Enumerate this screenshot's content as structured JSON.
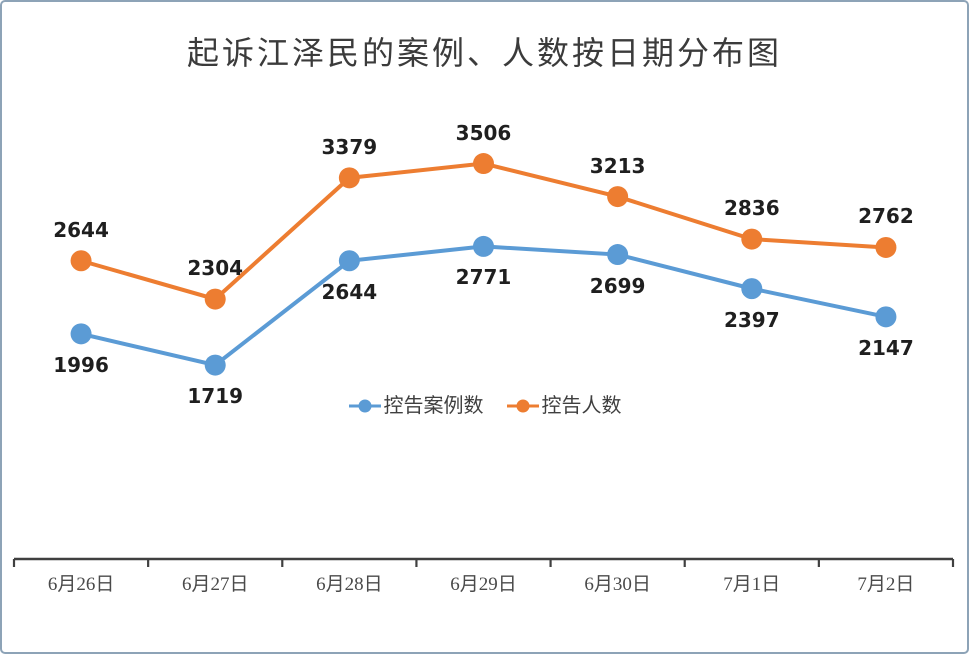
{
  "window": {
    "background": "#FFFFFF",
    "border_color": "#8DA3B7"
  },
  "chart_data": {
    "type": "line",
    "title": "起诉江泽民的案例、人数按日期分布图",
    "categories": [
      "6月26日",
      "6月27日",
      "6月28日",
      "6月29日",
      "6月30日",
      "7月1日",
      "7月2日"
    ],
    "series": [
      {
        "name": "控告案例数",
        "color": "#5B9BD5",
        "values": [
          1996,
          1719,
          2644,
          2771,
          2699,
          2397,
          2147
        ],
        "label_position": "below"
      },
      {
        "name": "控告人数",
        "color": "#ED7D31",
        "values": [
          2644,
          2304,
          3379,
          3506,
          3213,
          2836,
          2762
        ],
        "label_position": "above"
      }
    ],
    "xlabel": "",
    "ylabel": "",
    "ylim": [
      0,
      4000
    ],
    "y_axis_visible": false,
    "gridlines": false,
    "legend_position": "bottom-center-inside",
    "axis_color": "#404040",
    "data_label_color": "#1F1F1F",
    "tick_label_color": "#4A4A4A",
    "marker": "circle",
    "line_width": 4,
    "marker_radius": 10.5
  }
}
